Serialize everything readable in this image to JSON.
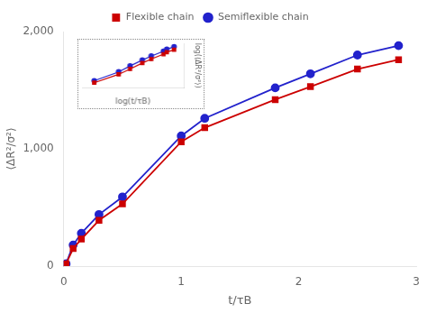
{
  "chart_data": [
    {
      "type": "line",
      "x_label": "t/τB",
      "y_label": "⟨ΔR²/σ²⟩",
      "x": [
        0.02,
        0.08,
        0.15,
        0.3,
        0.5,
        1.0,
        1.2,
        1.8,
        2.1,
        2.5,
        2.85
      ],
      "series": [
        {
          "name": "Flexible chain",
          "color": "#cc0000",
          "marker": "square",
          "values": [
            20,
            150,
            230,
            390,
            530,
            1060,
            1180,
            1420,
            1530,
            1680,
            1760
          ]
        },
        {
          "name": "Semiflexible chain",
          "color": "#2222cc",
          "marker": "circle",
          "values": [
            20,
            180,
            280,
            440,
            590,
            1110,
            1260,
            1520,
            1640,
            1800,
            1880
          ]
        }
      ],
      "xlim": [
        0,
        3.0
      ],
      "ylim": [
        0,
        2000
      ],
      "xticks": [
        0,
        1,
        2,
        3
      ],
      "yticks": [
        0,
        1000,
        2000
      ],
      "grid": false,
      "legend": "top"
    },
    {
      "type": "line",
      "x_label": "log(t/τB)",
      "y_label": "log(⟨ΔR²/σ²⟩)",
      "x": [
        -1.7,
        -1.1,
        -0.82,
        -0.52,
        -0.3,
        -0.0,
        0.08,
        0.26
      ],
      "series": [
        {
          "color": "#cc0000",
          "marker": "square",
          "values": [
            2.3,
            2.47,
            2.58,
            2.7,
            2.78,
            2.88,
            2.92,
            2.97
          ]
        },
        {
          "color": "#2222cc",
          "marker": "circle",
          "values": [
            2.34,
            2.52,
            2.64,
            2.76,
            2.84,
            2.94,
            2.98,
            3.03
          ]
        }
      ],
      "xlim": [
        -2,
        0.5
      ],
      "ylim": [
        2.2,
        3.1
      ],
      "grid": false,
      "tick_labels": false
    }
  ]
}
